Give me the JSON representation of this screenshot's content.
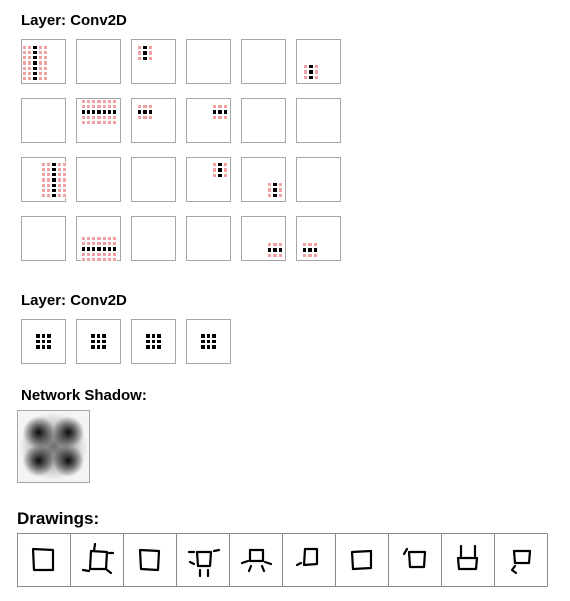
{
  "layers": [
    {
      "title": "Layer: Conv2D"
    },
    {
      "title": "Layer: Conv2D"
    }
  ],
  "network_shadow": {
    "title": "Network Shadow:"
  },
  "drawings": {
    "title": "Drawings:"
  },
  "colors": {
    "activation_positive": "#f2a0a0",
    "activation_strong": "#000000",
    "cell_border": "#a6a6a6"
  },
  "icons": {
    "kernel": "kernel-3x3-icon",
    "drawing": "square-sketch-icon"
  }
}
